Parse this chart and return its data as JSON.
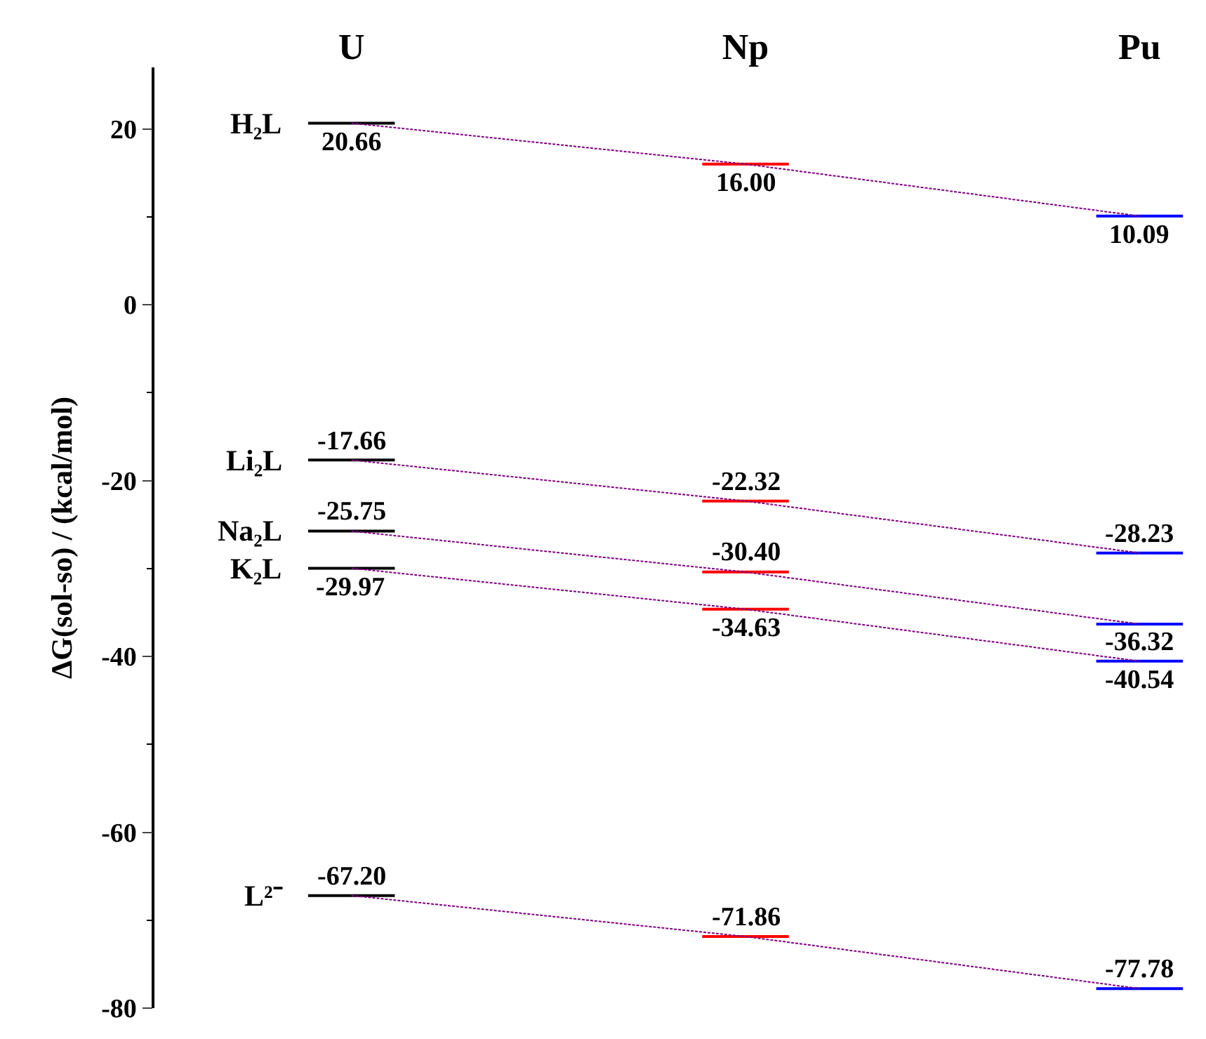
{
  "chart_data": {
    "type": "line",
    "ylabel": "ΔG(sol-so) / (kcal/mol)",
    "categories": [
      "U",
      "Np",
      "Pu"
    ],
    "ylim": [
      -80,
      27
    ],
    "yticks": [
      -80,
      -60,
      -40,
      -20,
      0,
      20
    ],
    "line_style": "dotted",
    "series": [
      {
        "name": "H₂L",
        "color": "#800080",
        "colors": [
          "#000000",
          "#ff0000",
          "#0000ff"
        ],
        "values": [
          20.66,
          16.0,
          10.09
        ],
        "value_labels": [
          "20.66",
          "16.00",
          "10.09"
        ]
      },
      {
        "name": "Li₂L",
        "color": "#800080",
        "colors": [
          "#000000",
          "#ff0000",
          "#0000ff"
        ],
        "values": [
          -17.66,
          -22.32,
          -28.23
        ],
        "value_labels": [
          "-17.66",
          "-22.32",
          "-28.23"
        ]
      },
      {
        "name": "Na₂L",
        "color": "#800080",
        "colors": [
          "#000000",
          "#ff0000",
          "#0000ff"
        ],
        "values": [
          -25.75,
          -30.4,
          -36.32
        ],
        "value_labels": [
          "-25.75",
          "-30.40",
          "-36.32"
        ]
      },
      {
        "name": "K₂L",
        "color": "#800080",
        "colors": [
          "#000000",
          "#ff0000",
          "#0000ff"
        ],
        "values": [
          -29.97,
          -34.63,
          -40.54
        ],
        "value_labels": [
          "-29.97",
          "-34.63",
          "-40.54"
        ]
      },
      {
        "name": "L²⁻",
        "color": "#800080",
        "colors": [
          "#000000",
          "#ff0000",
          "#0000ff"
        ],
        "values": [
          -67.2,
          -71.86,
          -77.78
        ],
        "value_labels": [
          "-67.20",
          "-71.86",
          "-77.78"
        ]
      }
    ]
  }
}
